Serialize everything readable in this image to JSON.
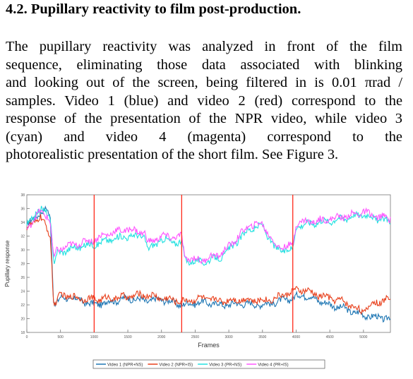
{
  "section": {
    "heading": "4.2. Pupillary reactivity to film post-production.",
    "paragraph_lines": [
      " The pupillary reactivity was analyzed in front of the film",
      "sequence, eliminating those data associated with blinking",
      "and looking out of the screen, being filtered in is 0.01 πrad /",
      "samples. Video 1 (blue) and video 2 (red) correspond to the",
      "response of the presentation of the NPR video, while video 3",
      "(cyan)  and  video  4  (magenta)  correspond  to  the",
      "photorealistic presentation of the short film. See Figure 3."
    ]
  },
  "chart_data": {
    "type": "line",
    "xlabel": "Frames",
    "ylabel": "Pupillary response",
    "xlim": [
      0,
      5400
    ],
    "ylim": [
      18,
      38
    ],
    "xticks": [
      0,
      500,
      1000,
      1500,
      2000,
      2500,
      3000,
      3500,
      4000,
      4500,
      5000
    ],
    "yticks": [
      18,
      20,
      22,
      24,
      26,
      28,
      30,
      32,
      34,
      36,
      38
    ],
    "grid": false,
    "legend_position": "bottom",
    "vlines": {
      "color": "#ff2a1a",
      "x": [
        1000,
        2300,
        3950
      ]
    },
    "series": [
      {
        "name": "Video 1 (NPR+NS)",
        "color": "#1f77b4",
        "x": [
          0,
          100,
          200,
          300,
          350,
          400,
          450,
          500,
          750,
          1000,
          1250,
          1500,
          1750,
          2000,
          2300,
          2600,
          2900,
          3200,
          3500,
          3700,
          3950,
          4100,
          4300,
          4500,
          4700,
          4900,
          5100,
          5400
        ],
        "y": [
          33.5,
          34.5,
          35.5,
          35.8,
          34.5,
          22.0,
          22.5,
          23.0,
          22.8,
          22.0,
          22.5,
          23.0,
          22.6,
          22.8,
          22.0,
          22.4,
          22.0,
          22.2,
          22.0,
          22.4,
          23.0,
          23.5,
          22.8,
          22.0,
          21.5,
          20.8,
          20.3,
          20.0
        ]
      },
      {
        "name": "Video 2 (NPR+IS)",
        "color": "#e8401c",
        "x": [
          0,
          100,
          200,
          300,
          350,
          400,
          450,
          500,
          750,
          1000,
          1250,
          1500,
          1750,
          2000,
          2300,
          2600,
          2900,
          3200,
          3500,
          3700,
          3950,
          4100,
          4300,
          4500,
          4700,
          4900,
          5000,
          5100,
          5400
        ],
        "y": [
          33.0,
          34.0,
          34.8,
          33.0,
          32.0,
          22.0,
          22.5,
          23.5,
          23.0,
          22.8,
          23.0,
          23.2,
          23.5,
          23.0,
          22.5,
          23.0,
          22.6,
          22.8,
          22.6,
          23.0,
          24.0,
          24.2,
          23.5,
          23.0,
          22.5,
          21.5,
          21.0,
          22.0,
          23.0
        ]
      },
      {
        "name": "Video 3 (PR+NS)",
        "color": "#22e0e0",
        "x": [
          0,
          100,
          200,
          300,
          350,
          400,
          450,
          600,
          800,
          1000,
          1250,
          1500,
          1750,
          1800,
          2000,
          2250,
          2300,
          2350,
          2600,
          2900,
          3100,
          3300,
          3500,
          3700,
          3950,
          4000,
          4300,
          4500,
          4800,
          5000,
          5200,
          5400
        ],
        "y": [
          33.5,
          35.0,
          35.8,
          35.5,
          34.5,
          28.0,
          29.5,
          30.0,
          30.5,
          30.8,
          31.5,
          32.0,
          32.0,
          30.0,
          31.5,
          31.0,
          31.2,
          28.5,
          28.2,
          29.0,
          31.0,
          33.0,
          33.5,
          30.0,
          30.0,
          33.5,
          34.0,
          34.2,
          34.8,
          35.2,
          34.5,
          34.2
        ]
      },
      {
        "name": "Video 4 (PR+IS)",
        "color": "#ff55ff",
        "x": [
          0,
          100,
          200,
          300,
          350,
          400,
          450,
          600,
          800,
          1000,
          1250,
          1500,
          1750,
          1800,
          2000,
          2250,
          2300,
          2350,
          2600,
          2900,
          3100,
          3300,
          3500,
          3700,
          3950,
          4000,
          4300,
          4500,
          4800,
          5000,
          5200,
          5400
        ],
        "y": [
          33.0,
          34.5,
          35.5,
          35.0,
          34.0,
          28.5,
          30.0,
          30.5,
          31.0,
          31.5,
          32.5,
          33.0,
          32.5,
          31.0,
          32.0,
          31.8,
          32.0,
          28.8,
          28.5,
          29.5,
          31.5,
          33.5,
          33.8,
          30.5,
          30.5,
          34.0,
          34.2,
          34.5,
          35.0,
          35.5,
          34.8,
          34.6
        ]
      }
    ]
  }
}
